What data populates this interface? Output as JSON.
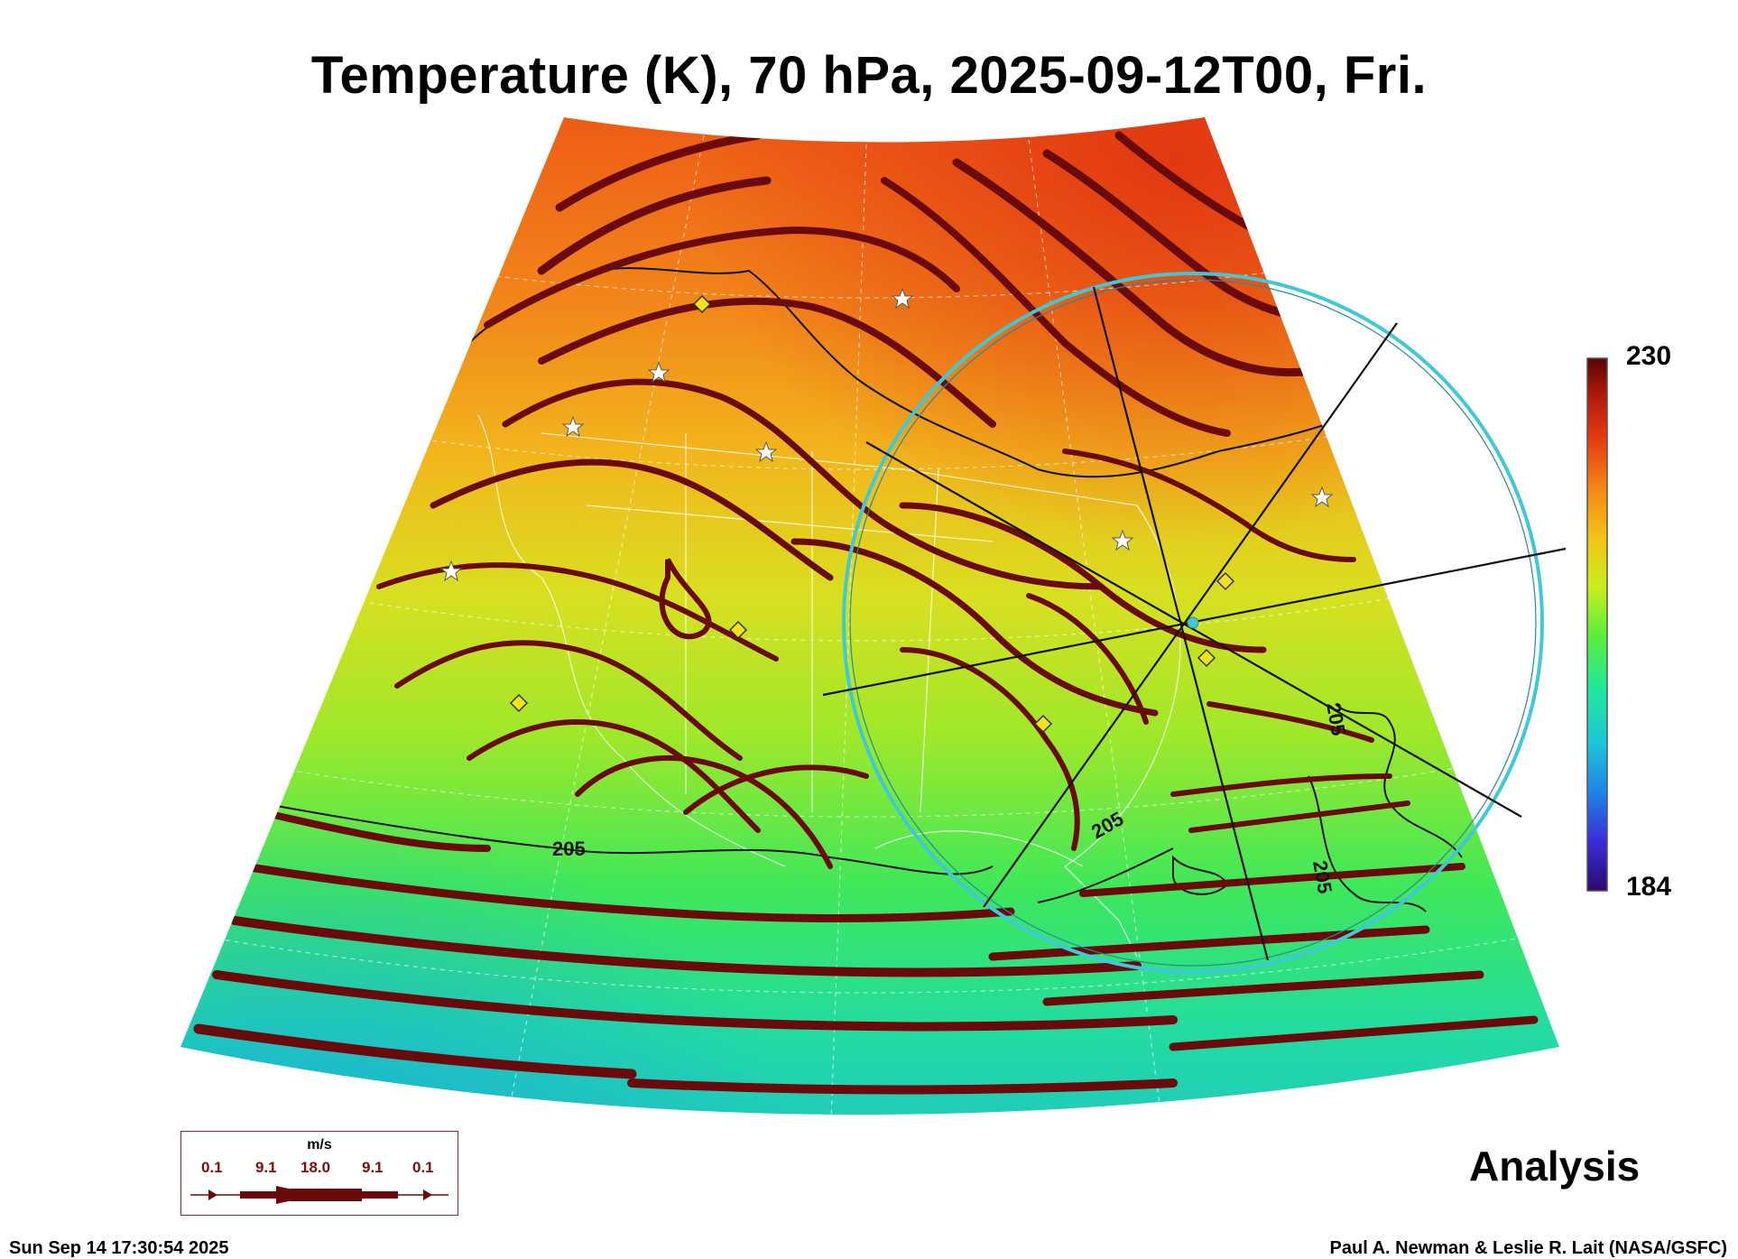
{
  "title": "Temperature (K), 70 hPa, 2025-09-12T00, Fri.",
  "colorbar": {
    "max_label": "230",
    "min_label": "184",
    "colors": [
      "#2a0a6e",
      "#3b2bd6",
      "#1f7fe8",
      "#1fc7d8",
      "#20e89a",
      "#5cee3a",
      "#c8ee20",
      "#f2c418",
      "#f58a16",
      "#e63a12",
      "#b01a0a",
      "#5a0404"
    ]
  },
  "contour_labels": [
    "205",
    "205",
    "205",
    "205"
  ],
  "wind_legend": {
    "unit": "m/s",
    "values": [
      "0.1",
      "9.1",
      "18.0",
      "9.1",
      "0.1"
    ]
  },
  "stamp": "Analysis",
  "footer": {
    "timestamp": "Sun Sep 14 17:30:54 2025",
    "credit": "Paul A. Newman & Leslie R. Lait (NASA/GSFC)"
  },
  "colors": {
    "streamline": "#6b0a0a",
    "circle": "#3fc8d8",
    "marker": "#f2e21a"
  }
}
